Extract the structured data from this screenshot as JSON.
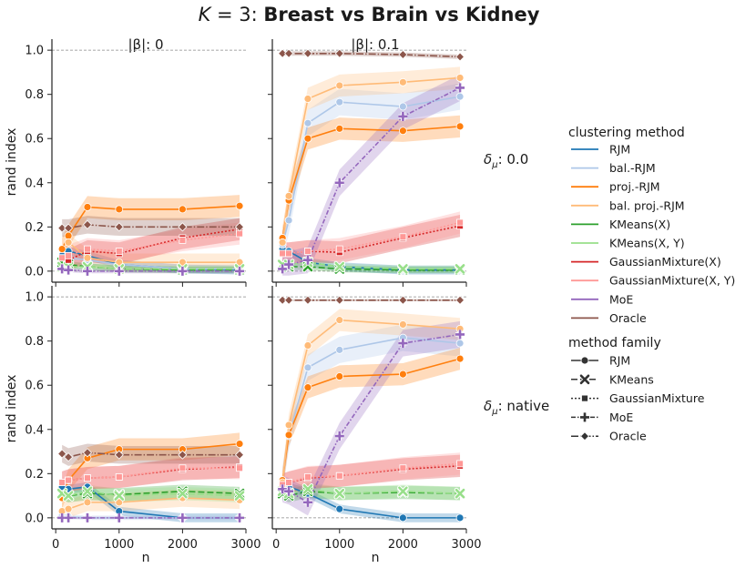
{
  "figure": {
    "title": "K = 3: Breast vs Brain vs Kidney",
    "title_k": "K",
    "title_eq": " = 3: ",
    "title_rest": "Breast vs Brain vs Kidney",
    "col_titles": [
      "|β|: 0",
      "|β|: 0.1"
    ],
    "row_titles": [
      "δ_μ: 0.0",
      "δ_μ: native"
    ],
    "row_title_text": [
      "0.0",
      "native"
    ]
  },
  "chart_data": {
    "type": "line",
    "title": "K = 3: Breast vs Brain vs Kidney",
    "xlabel": "n",
    "ylabel": "rand index",
    "xlim": [
      -60,
      3000
    ],
    "ylim": [
      -0.05,
      1.05
    ],
    "xticks": [
      0,
      1000,
      2000,
      3000
    ],
    "yticks": [
      0.0,
      0.2,
      0.4,
      0.6,
      0.8,
      1.0
    ],
    "x": [
      100,
      200,
      500,
      1000,
      2000,
      2900
    ],
    "oracle_reference_line": 1.0,
    "methods": [
      {
        "name": "RJM",
        "color": "#1f77b4",
        "family": "RJM"
      },
      {
        "name": "bal.-RJM",
        "color": "#aec7e8",
        "family": "RJM"
      },
      {
        "name": "proj.-RJM",
        "color": "#ff7f0e",
        "family": "RJM"
      },
      {
        "name": "bal. proj.-RJM",
        "color": "#ffbb78",
        "family": "RJM"
      },
      {
        "name": "KMeans(X)",
        "color": "#2ca02c",
        "family": "KMeans"
      },
      {
        "name": "KMeans(X, Y)",
        "color": "#98df8a",
        "family": "KMeans"
      },
      {
        "name": "GaussianMixture(X)",
        "color": "#d62728",
        "family": "GaussianMixture"
      },
      {
        "name": "GaussianMixture(X, Y)",
        "color": "#ff9896",
        "family": "GaussianMixture"
      },
      {
        "name": "MoE",
        "color": "#9467bd",
        "family": "MoE"
      },
      {
        "name": "Oracle",
        "color": "#8c564b",
        "family": "Oracle"
      }
    ],
    "families": [
      {
        "name": "RJM",
        "dash": "",
        "marker": "circle"
      },
      {
        "name": "KMeans",
        "dash": "7,3",
        "marker": "x"
      },
      {
        "name": "GaussianMixture",
        "dash": "2,2",
        "marker": "square"
      },
      {
        "name": "MoE",
        "dash": "5,2,1.5,2",
        "marker": "plus"
      },
      {
        "name": "Oracle",
        "dash": "8,2,1.5,2",
        "marker": "diamond"
      }
    ],
    "panels": [
      {
        "row": 0,
        "col": 0,
        "series": [
          {
            "name": "RJM",
            "values": [
              0.07,
              0.09,
              0.07,
              0.03,
              0.01,
              0.005
            ],
            "band": 0.02
          },
          {
            "name": "bal.-RJM",
            "values": [
              0.05,
              0.06,
              0.05,
              0.03,
              0.01,
              0.01
            ],
            "band": 0.02
          },
          {
            "name": "proj.-RJM",
            "values": [
              0.1,
              0.16,
              0.29,
              0.28,
              0.28,
              0.295
            ],
            "band": 0.05
          },
          {
            "name": "bal. proj.-RJM",
            "values": [
              0.05,
              0.13,
              0.06,
              0.04,
              0.04,
              0.04
            ],
            "band": 0.04
          },
          {
            "name": "KMeans(X)",
            "values": [
              0.04,
              0.03,
              0.02,
              0.01,
              0.005,
              0.005
            ],
            "band": 0.015
          },
          {
            "name": "KMeans(X, Y)",
            "values": [
              0.02,
              0.02,
              0.02,
              0.01,
              0.01,
              0.01
            ],
            "band": 0.015
          },
          {
            "name": "GaussianMixture(X)",
            "values": [
              0.06,
              0.05,
              0.09,
              0.08,
              0.15,
              0.19
            ],
            "band": 0.05
          },
          {
            "name": "GaussianMixture(X, Y)",
            "values": [
              0.06,
              0.07,
              0.1,
              0.09,
              0.14,
              0.17
            ],
            "band": 0.05
          },
          {
            "name": "MoE",
            "values": [
              0.01,
              0.005,
              0.0,
              0.0,
              0.0,
              0.0
            ],
            "band": 0.01
          },
          {
            "name": "Oracle",
            "values": [
              0.195,
              0.195,
              0.21,
              0.2,
              0.2,
              0.2
            ],
            "band": 0.04
          }
        ]
      },
      {
        "row": 0,
        "col": 1,
        "series": [
          {
            "name": "RJM",
            "values": [
              0.1,
              0.09,
              0.04,
              0.02,
              0.005,
              0.005
            ],
            "band": 0.02
          },
          {
            "name": "bal.-RJM",
            "values": [
              0.12,
              0.23,
              0.67,
              0.765,
              0.745,
              0.79
            ],
            "band": 0.06
          },
          {
            "name": "proj.-RJM",
            "values": [
              0.15,
              0.32,
              0.6,
              0.645,
              0.635,
              0.655
            ],
            "band": 0.05
          },
          {
            "name": "bal. proj.-RJM",
            "values": [
              0.13,
              0.34,
              0.78,
              0.84,
              0.855,
              0.875
            ],
            "band": 0.05
          },
          {
            "name": "KMeans(X)",
            "values": [
              0.03,
              0.02,
              0.02,
              0.01,
              0.005,
              0.005
            ],
            "band": 0.015
          },
          {
            "name": "KMeans(X, Y)",
            "values": [
              0.03,
              0.03,
              0.04,
              0.02,
              0.01,
              0.01
            ],
            "band": 0.015
          },
          {
            "name": "GaussianMixture(X)",
            "values": [
              0.08,
              0.08,
              0.09,
              0.085,
              0.15,
              0.205
            ],
            "band": 0.05
          },
          {
            "name": "GaussianMixture(X, Y)",
            "values": [
              0.08,
              0.08,
              0.09,
              0.1,
              0.155,
              0.22
            ],
            "band": 0.05
          },
          {
            "name": "MoE",
            "values": [
              0.01,
              0.03,
              0.05,
              0.4,
              0.7,
              0.83
            ],
            "band": 0.06
          },
          {
            "name": "Oracle",
            "values": [
              0.985,
              0.985,
              0.985,
              0.985,
              0.98,
              0.97
            ],
            "band": 0.01
          }
        ]
      },
      {
        "row": 1,
        "col": 0,
        "series": [
          {
            "name": "RJM",
            "values": [
              0.14,
              0.13,
              0.14,
              0.03,
              0.0,
              0.0
            ],
            "band": 0.02
          },
          {
            "name": "bal.-RJM",
            "values": [
              0.01,
              0.005,
              0.0,
              0.0,
              0.0,
              0.0
            ],
            "band": 0.01
          },
          {
            "name": "proj.-RJM",
            "values": [
              0.09,
              0.17,
              0.27,
              0.31,
              0.31,
              0.335
            ],
            "band": 0.05
          },
          {
            "name": "bal. proj.-RJM",
            "values": [
              0.03,
              0.04,
              0.07,
              0.07,
              0.09,
              0.08
            ],
            "band": 0.04
          },
          {
            "name": "KMeans(X)",
            "values": [
              0.11,
              0.1,
              0.11,
              0.105,
              0.12,
              0.11
            ],
            "band": 0.03
          },
          {
            "name": "KMeans(X, Y)",
            "values": [
              0.11,
              0.1,
              0.12,
              0.1,
              0.11,
              0.1
            ],
            "band": 0.03
          },
          {
            "name": "GaussianMixture(X)",
            "values": [
              0.16,
              0.17,
              0.18,
              0.185,
              0.22,
              0.23
            ],
            "band": 0.05
          },
          {
            "name": "GaussianMixture(X, Y)",
            "values": [
              0.16,
              0.17,
              0.18,
              0.185,
              0.225,
              0.225
            ],
            "band": 0.05
          },
          {
            "name": "MoE",
            "values": [
              0.0,
              0.0,
              0.0,
              0.0,
              0.0,
              0.0
            ],
            "band": 0.005
          },
          {
            "name": "Oracle",
            "values": [
              0.29,
              0.275,
              0.295,
              0.285,
              0.285,
              0.285
            ],
            "band": 0.04
          }
        ]
      },
      {
        "row": 1,
        "col": 1,
        "series": [
          {
            "name": "RJM",
            "values": [
              0.15,
              0.14,
              0.11,
              0.04,
              0.0,
              0.0
            ],
            "band": 0.02
          },
          {
            "name": "bal.-RJM",
            "values": [
              0.17,
              0.37,
              0.68,
              0.76,
              0.815,
              0.79
            ],
            "band": 0.06
          },
          {
            "name": "proj.-RJM",
            "values": [
              0.17,
              0.375,
              0.59,
              0.64,
              0.65,
              0.72
            ],
            "band": 0.05
          },
          {
            "name": "bal. proj.-RJM",
            "values": [
              0.16,
              0.42,
              0.78,
              0.895,
              0.875,
              0.855
            ],
            "band": 0.05
          },
          {
            "name": "KMeans(X)",
            "values": [
              0.11,
              0.1,
              0.12,
              0.11,
              0.115,
              0.11
            ],
            "band": 0.03
          },
          {
            "name": "KMeans(X, Y)",
            "values": [
              0.12,
              0.11,
              0.13,
              0.11,
              0.12,
              0.11
            ],
            "band": 0.03
          },
          {
            "name": "GaussianMixture(X)",
            "values": [
              0.15,
              0.16,
              0.18,
              0.19,
              0.22,
              0.235
            ],
            "band": 0.05
          },
          {
            "name": "GaussianMixture(X, Y)",
            "values": [
              0.15,
              0.16,
              0.185,
              0.19,
              0.225,
              0.245
            ],
            "band": 0.05
          },
          {
            "name": "MoE",
            "values": [
              0.13,
              0.12,
              0.07,
              0.37,
              0.79,
              0.83
            ],
            "band": 0.06
          },
          {
            "name": "Oracle",
            "values": [
              0.985,
              0.985,
              0.985,
              0.985,
              0.985,
              0.985
            ],
            "band": 0.005
          }
        ]
      }
    ]
  },
  "legend": {
    "title_methods": "clustering method",
    "title_families": "method family"
  }
}
